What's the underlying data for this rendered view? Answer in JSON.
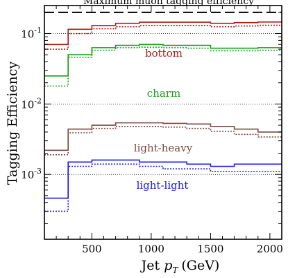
{
  "chart_data": {
    "type": "line",
    "subtype": "step",
    "xlabel_main": "Jet",
    "xlabel_var": "p",
    "xlabel_sub": "T",
    "xlabel_unit": "(GeV)",
    "ylabel": "Tagging Efficiency",
    "xlim": [
      100,
      2100
    ],
    "ylim": [
      0.00012,
      0.25
    ],
    "yscale": "log",
    "x_ticks": [
      {
        "value": 500,
        "label": "500"
      },
      {
        "value": 1000,
        "label": "1000"
      },
      {
        "value": 1500,
        "label": "1500"
      },
      {
        "value": 2000,
        "label": "2000"
      }
    ],
    "y_ticks": [
      {
        "value": 0.001,
        "base": "10",
        "exp": "-3"
      },
      {
        "value": 0.01,
        "base": "10",
        "exp": "-2"
      },
      {
        "value": 0.1,
        "base": "10",
        "exp": "-1"
      }
    ],
    "bin_edges": [
      100,
      300,
      500,
      700,
      900,
      1100,
      1300,
      1500,
      1700,
      1900,
      2100
    ],
    "reference_lines": [
      0.001,
      0.01,
      0.1
    ],
    "annotation": {
      "label": "Maximum muon tagging efficiency",
      "value": 0.2
    },
    "series": [
      {
        "name": "bottom",
        "color": "#b01818",
        "solid": [
          0.07,
          0.115,
          0.13,
          0.14,
          0.145,
          0.145,
          0.145,
          0.14,
          0.143,
          0.146
        ],
        "dotted": [
          0.06,
          0.1,
          0.117,
          0.125,
          0.13,
          0.13,
          0.13,
          0.125,
          0.128,
          0.131
        ]
      },
      {
        "name": "charm",
        "color": "#1a9a1a",
        "solid": [
          0.025,
          0.05,
          0.063,
          0.068,
          0.07,
          0.068,
          0.068,
          0.062,
          0.062,
          0.063
        ],
        "dotted": [
          0.018,
          0.046,
          0.058,
          0.063,
          0.064,
          0.063,
          0.062,
          0.057,
          0.057,
          0.058
        ]
      },
      {
        "name": "light-heavy",
        "color": "#7a4a40",
        "solid": [
          0.0022,
          0.0044,
          0.005,
          0.0054,
          0.0054,
          0.0053,
          0.0052,
          0.0048,
          0.0044,
          0.004
        ],
        "dotted": [
          0.0019,
          0.0039,
          0.0045,
          0.0048,
          0.0048,
          0.0047,
          0.0045,
          0.0041,
          0.0037,
          0.0034
        ]
      },
      {
        "name": "light-light",
        "color": "#1a1aee",
        "solid": [
          0.00046,
          0.0015,
          0.0016,
          0.0016,
          0.0015,
          0.0015,
          0.0014,
          0.0013,
          0.0014,
          0.0014
        ],
        "dotted": [
          0.0003,
          0.0013,
          0.0014,
          0.0014,
          0.0013,
          0.0012,
          0.0012,
          0.0011,
          0.0011,
          0.0011
        ]
      }
    ]
  }
}
